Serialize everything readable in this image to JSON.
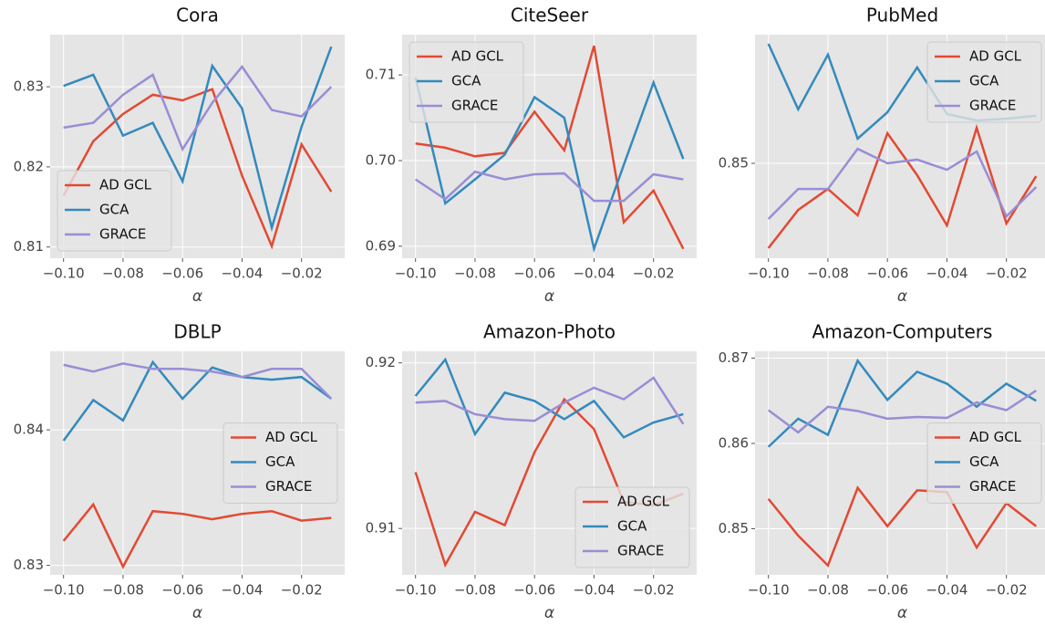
{
  "chart_data": [
    {
      "type": "line",
      "title": "Cora",
      "x_label": "α",
      "legend": "lower left",
      "x": [
        -0.1,
        -0.09,
        -0.08,
        -0.07,
        -0.06,
        -0.05,
        -0.04,
        -0.03,
        -0.02,
        -0.01
      ],
      "xlim": [
        -0.1045,
        -0.0055
      ],
      "ylim": [
        0.8086,
        0.8365
      ],
      "xticks": [
        {
          "value": -0.1,
          "label": "−0.10"
        },
        {
          "value": -0.08,
          "label": "−0.08"
        },
        {
          "value": -0.06,
          "label": "−0.06"
        },
        {
          "value": -0.04,
          "label": "−0.04"
        },
        {
          "value": -0.02,
          "label": "−0.02"
        }
      ],
      "yticks": [
        0.81,
        0.82,
        0.83
      ],
      "series": [
        {
          "name": "AD GCL",
          "color": "#E24A33",
          "values": [
            0.8164,
            0.8232,
            0.8266,
            0.829,
            0.8283,
            0.8297,
            0.8189,
            0.8101,
            0.8228,
            0.8169
          ]
        },
        {
          "name": "GCA",
          "color": "#348ABD",
          "values": [
            0.8301,
            0.8315,
            0.8239,
            0.8255,
            0.8182,
            0.8326,
            0.8273,
            0.8124,
            0.825,
            0.835
          ]
        },
        {
          "name": "GRACE",
          "color": "#988ED5",
          "values": [
            0.8249,
            0.8255,
            0.829,
            0.8315,
            0.8222,
            0.828,
            0.8325,
            0.8271,
            0.8263,
            0.83
          ]
        }
      ]
    },
    {
      "type": "line",
      "title": "CiteSeer",
      "x_label": "α",
      "legend": "upper left",
      "x": [
        -0.1,
        -0.09,
        -0.08,
        -0.07,
        -0.06,
        -0.05,
        -0.04,
        -0.03,
        -0.02,
        -0.01
      ],
      "xlim": [
        -0.1045,
        -0.0055
      ],
      "ylim": [
        0.6886,
        0.7147
      ],
      "xticks": [
        {
          "value": -0.1,
          "label": "−0.10"
        },
        {
          "value": -0.08,
          "label": "−0.08"
        },
        {
          "value": -0.06,
          "label": "−0.06"
        },
        {
          "value": -0.04,
          "label": "−0.04"
        },
        {
          "value": -0.02,
          "label": "−0.02"
        }
      ],
      "yticks": [
        0.69,
        {
          "value": 0.7,
          "label": "0.70"
        },
        0.71
      ],
      "series": [
        {
          "name": "AD GCL",
          "color": "#E24A33",
          "values": [
            0.702,
            0.7015,
            0.7005,
            0.7009,
            0.7057,
            0.7012,
            0.7134,
            0.6928,
            0.6965,
            0.6897
          ]
        },
        {
          "name": "GCA",
          "color": "#348ABD",
          "values": [
            0.7097,
            0.695,
            0.6978,
            0.7007,
            0.7074,
            0.705,
            0.6897,
            0.6995,
            0.7091,
            0.7002
          ]
        },
        {
          "name": "GRACE",
          "color": "#988ED5",
          "values": [
            0.6978,
            0.6955,
            0.6987,
            0.6978,
            0.6984,
            0.6985,
            0.6953,
            0.6953,
            0.6984,
            0.6978
          ]
        }
      ]
    },
    {
      "type": "line",
      "title": "PubMed",
      "x_label": "α",
      "legend": "upper right",
      "x": [
        -0.1,
        -0.09,
        -0.08,
        -0.07,
        -0.06,
        -0.05,
        -0.04,
        -0.03,
        -0.02,
        -0.01
      ],
      "xlim": [
        -0.1045,
        -0.0055
      ],
      "ylim": [
        0.84615,
        0.85522
      ],
      "xticks": [
        {
          "value": -0.1,
          "label": "−0.10"
        },
        {
          "value": -0.08,
          "label": "−0.08"
        },
        {
          "value": -0.06,
          "label": "−0.06"
        },
        {
          "value": -0.04,
          "label": "−0.04"
        },
        {
          "value": -0.02,
          "label": "−0.02"
        }
      ],
      "yticks": [
        0.85
      ],
      "series": [
        {
          "name": "AD GCL",
          "color": "#E24A33",
          "values": [
            0.84656,
            0.84811,
            0.84896,
            0.84789,
            0.85122,
            0.84952,
            0.84748,
            0.85144,
            0.84756,
            0.84948
          ]
        },
        {
          "name": "GCA",
          "color": "#348ABD",
          "values": [
            0.85485,
            0.85219,
            0.85441,
            0.851,
            0.85207,
            0.85389,
            0.852,
            0.85174,
            0.85181,
            0.85193
          ]
        },
        {
          "name": "GRACE",
          "color": "#988ED5",
          "values": [
            0.84774,
            0.84896,
            0.84896,
            0.85059,
            0.85,
            0.85015,
            0.84974,
            0.85048,
            0.84785,
            0.84904
          ]
        }
      ]
    },
    {
      "type": "line",
      "title": "DBLP",
      "x_label": "α",
      "legend": "center right",
      "x": [
        -0.1,
        -0.09,
        -0.08,
        -0.07,
        -0.06,
        -0.05,
        -0.04,
        -0.03,
        -0.02,
        -0.01
      ],
      "xlim": [
        -0.1045,
        -0.0055
      ],
      "ylim": [
        0.8293,
        0.8458
      ],
      "xticks": [
        {
          "value": -0.1,
          "label": "−0.10"
        },
        {
          "value": -0.08,
          "label": "−0.08"
        },
        {
          "value": -0.06,
          "label": "−0.06"
        },
        {
          "value": -0.04,
          "label": "−0.04"
        },
        {
          "value": -0.02,
          "label": "−0.02"
        }
      ],
      "yticks": [
        0.83,
        0.84
      ],
      "series": [
        {
          "name": "AD GCL",
          "color": "#E24A33",
          "values": [
            0.8318,
            0.8345,
            0.8299,
            0.834,
            0.8338,
            0.8334,
            0.8338,
            0.834,
            0.8333,
            0.8335
          ]
        },
        {
          "name": "GCA",
          "color": "#348ABD",
          "values": [
            0.8392,
            0.8422,
            0.8407,
            0.845,
            0.8423,
            0.8446,
            0.8439,
            0.8437,
            0.8439,
            0.8423
          ]
        },
        {
          "name": "GRACE",
          "color": "#988ED5",
          "values": [
            0.8448,
            0.8443,
            0.8449,
            0.8445,
            0.8445,
            0.8443,
            0.8439,
            0.8445,
            0.8445,
            0.8423
          ]
        }
      ]
    },
    {
      "type": "line",
      "title": "Amazon-Photo",
      "x_label": "α",
      "legend": "lower right",
      "x": [
        -0.1,
        -0.09,
        -0.08,
        -0.07,
        -0.06,
        -0.05,
        -0.04,
        -0.03,
        -0.02,
        -0.01
      ],
      "xlim": [
        -0.1045,
        -0.0055
      ],
      "ylim": [
        0.9072,
        0.9207
      ],
      "xticks": [
        {
          "value": -0.1,
          "label": "−0.10"
        },
        {
          "value": -0.08,
          "label": "−0.08"
        },
        {
          "value": -0.06,
          "label": "−0.06"
        },
        {
          "value": -0.04,
          "label": "−0.04"
        },
        {
          "value": -0.02,
          "label": "−0.02"
        }
      ],
      "yticks": [
        0.91,
        0.92
      ],
      "series": [
        {
          "name": "AD GCL",
          "color": "#E24A33",
          "values": [
            0.9134,
            0.9078,
            0.911,
            0.9102,
            0.9146,
            0.9178,
            0.916,
            0.9116,
            0.9114,
            0.9121
          ]
        },
        {
          "name": "GCA",
          "color": "#348ABD",
          "values": [
            0.918,
            0.9202,
            0.9157,
            0.9182,
            0.9177,
            0.9166,
            0.9177,
            0.9155,
            0.9164,
            0.9169
          ]
        },
        {
          "name": "GRACE",
          "color": "#988ED5",
          "values": [
            0.9176,
            0.9177,
            0.9169,
            0.9166,
            0.9165,
            0.9176,
            0.9185,
            0.9178,
            0.9191,
            0.9163
          ]
        }
      ]
    },
    {
      "type": "line",
      "title": "Amazon-Computers",
      "x_label": "α",
      "legend": "center right",
      "x": [
        -0.1,
        -0.09,
        -0.08,
        -0.07,
        -0.06,
        -0.05,
        -0.04,
        -0.03,
        -0.02,
        -0.01
      ],
      "xlim": [
        -0.1045,
        -0.0055
      ],
      "ylim": [
        0.8446,
        0.8708
      ],
      "xticks": [
        {
          "value": -0.1,
          "label": "−0.10"
        },
        {
          "value": -0.08,
          "label": "−0.08"
        },
        {
          "value": -0.06,
          "label": "−0.06"
        },
        {
          "value": -0.04,
          "label": "−0.04"
        },
        {
          "value": -0.02,
          "label": "−0.02"
        }
      ],
      "yticks": [
        0.85,
        0.86,
        0.87
      ],
      "series": [
        {
          "name": "AD GCL",
          "color": "#E24A33",
          "values": [
            0.8535,
            0.8492,
            0.8457,
            0.8548,
            0.8503,
            0.8545,
            0.8543,
            0.8478,
            0.853,
            0.8503
          ]
        },
        {
          "name": "GCA",
          "color": "#348ABD",
          "values": [
            0.8596,
            0.8629,
            0.861,
            0.8697,
            0.8651,
            0.8684,
            0.867,
            0.8643,
            0.867,
            0.865
          ]
        },
        {
          "name": "GRACE",
          "color": "#988ED5",
          "values": [
            0.8639,
            0.8613,
            0.8643,
            0.8638,
            0.8629,
            0.8631,
            0.863,
            0.8648,
            0.8639,
            0.8662
          ]
        }
      ]
    }
  ]
}
